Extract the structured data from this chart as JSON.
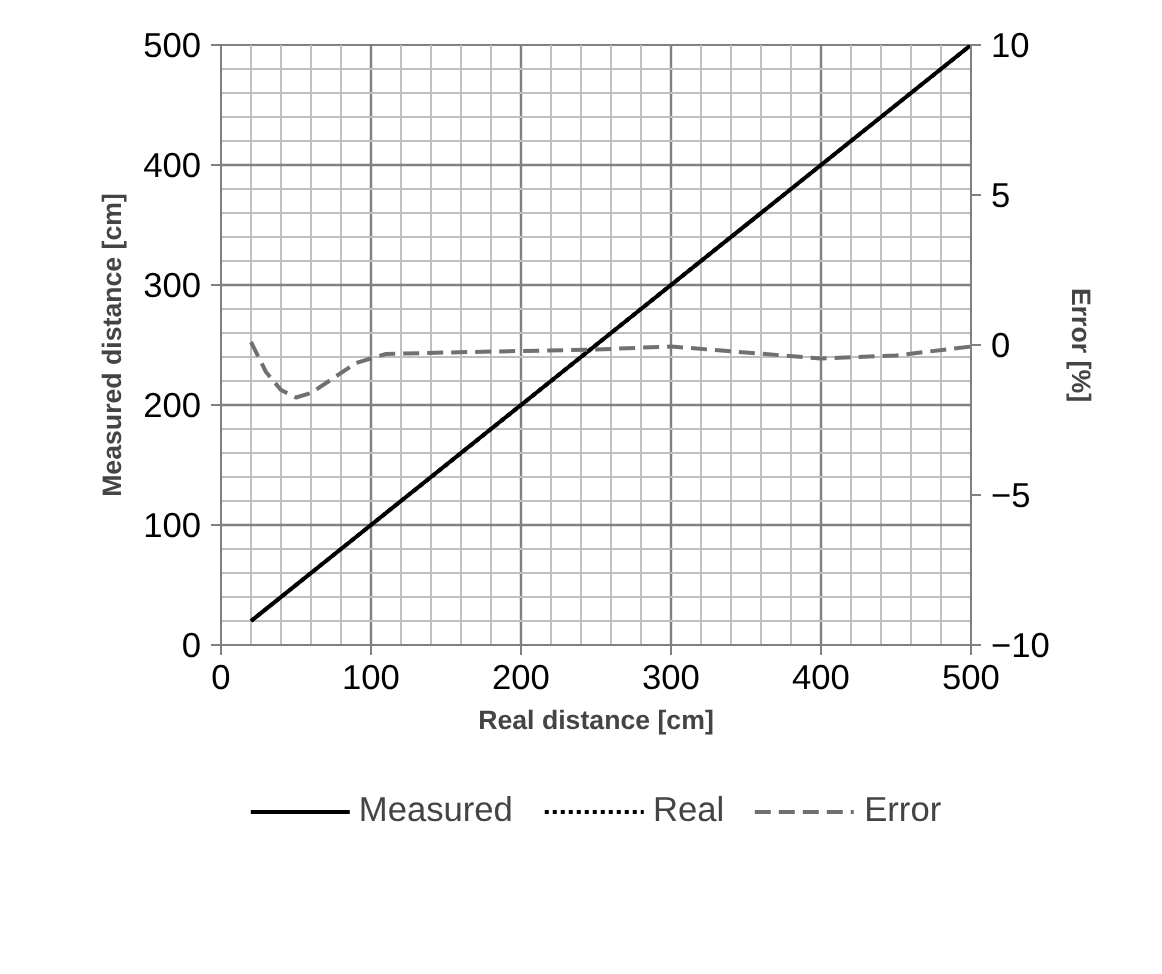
{
  "chart_data": {
    "type": "line",
    "xlabel": "Real distance [cm]",
    "ylabel": "Measured distance [cm]",
    "y2label": "Error [%]",
    "xlim": [
      0,
      500
    ],
    "xticks": [
      0,
      100,
      200,
      300,
      400,
      500
    ],
    "ylim": [
      0,
      500
    ],
    "yticks": [
      0,
      100,
      200,
      300,
      400,
      500
    ],
    "y2lim": [
      -10,
      10
    ],
    "y2ticks": [
      -10,
      -5,
      0,
      5,
      10
    ],
    "grid": true,
    "legend": "bottom",
    "series": [
      {
        "name": "Measured",
        "color": "#000000",
        "line_style": "solid",
        "x": [
          20,
          100,
          200,
          300,
          400,
          500
        ],
        "values": [
          20,
          100,
          200,
          300,
          400,
          500
        ]
      },
      {
        "name": "Real",
        "color": "#000000",
        "line_style": "dotted",
        "x": [
          20,
          100,
          200,
          300,
          400,
          500
        ],
        "values": [
          20,
          100,
          200,
          300,
          400,
          500
        ]
      },
      {
        "name": "Error",
        "color": "#707070",
        "line_style": "dashed",
        "axis": "y2",
        "x": [
          20,
          30,
          40,
          50,
          60,
          75,
          90,
          110,
          150,
          200,
          250,
          300,
          350,
          400,
          450,
          500
        ],
        "values": [
          0.1,
          -0.9,
          -1.5,
          -1.75,
          -1.6,
          -1.1,
          -0.6,
          -0.3,
          -0.25,
          -0.2,
          -0.15,
          -0.05,
          -0.25,
          -0.45,
          -0.35,
          -0.05
        ]
      }
    ]
  }
}
